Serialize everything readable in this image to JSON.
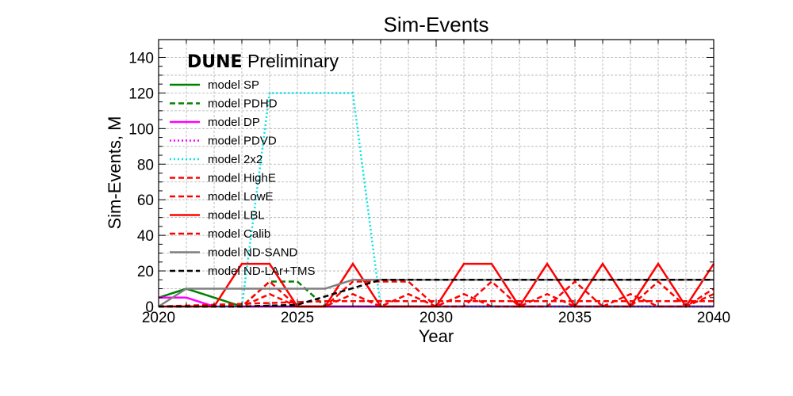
{
  "chart_data": {
    "type": "line",
    "title": "Sim-Events",
    "xlabel": "Year",
    "ylabel": "Sim-Events, M",
    "xlim": [
      2020,
      2040
    ],
    "ylim": [
      0,
      150
    ],
    "xticks": [
      2020,
      2025,
      2030,
      2035,
      2040
    ],
    "yticks": [
      0,
      20,
      40,
      60,
      80,
      100,
      120,
      140
    ],
    "grid": true,
    "legend_position": "top-left",
    "annotation": {
      "bold": "DUNE",
      "rest": " Preliminary"
    },
    "series": [
      {
        "name": "model SP",
        "color": "#008000",
        "dash": "solid",
        "x": [
          2020,
          2021,
          2023,
          2040
        ],
        "y": [
          5,
          10,
          0,
          0
        ]
      },
      {
        "name": "model PDHD",
        "color": "#008000",
        "dash": "dashed",
        "x": [
          2020,
          2023,
          2024,
          2025,
          2026,
          2040
        ],
        "y": [
          0,
          0,
          14,
          14,
          0,
          0
        ]
      },
      {
        "name": "model DP",
        "color": "#ff00ff",
        "dash": "solid",
        "x": [
          2020,
          2021,
          2022,
          2040
        ],
        "y": [
          5,
          5,
          0,
          0
        ]
      },
      {
        "name": "model PDVD",
        "color": "#ff00ff",
        "dash": "dotted",
        "x": [
          2020,
          2040
        ],
        "y": [
          0,
          0
        ]
      },
      {
        "name": "model 2x2",
        "color": "#00e5e5",
        "dash": "dotted",
        "x": [
          2020,
          2023,
          2024,
          2027,
          2028,
          2040
        ],
        "y": [
          0,
          0,
          120,
          120,
          0,
          0
        ]
      },
      {
        "name": "model HighE",
        "color": "#ff0000",
        "dash": "dashed",
        "x": [
          2020,
          2023,
          2024,
          2025,
          2026,
          2027,
          2028,
          2029,
          2030,
          2031,
          2032,
          2033,
          2034,
          2035,
          2036,
          2037,
          2038,
          2039,
          2040
        ],
        "y": [
          0,
          0,
          7,
          0,
          0,
          7,
          0,
          7,
          0,
          7,
          0,
          0,
          7,
          0,
          0,
          7,
          0,
          0,
          7
        ]
      },
      {
        "name": "model LowE",
        "color": "#ff0000",
        "dash": "dashed",
        "x": [
          2020,
          2023,
          2024,
          2025,
          2026,
          2027,
          2028,
          2029,
          2030,
          2031,
          2032,
          2033,
          2034,
          2035,
          2036,
          2037,
          2038,
          2039,
          2040
        ],
        "y": [
          0,
          0,
          14,
          0,
          0,
          14,
          14,
          14,
          0,
          0,
          14,
          0,
          0,
          14,
          0,
          0,
          14,
          0,
          10
        ]
      },
      {
        "name": "model LBL",
        "color": "#ff0000",
        "dash": "solid",
        "x": [
          2020,
          2022,
          2023,
          2024,
          2025,
          2026,
          2027,
          2028,
          2030,
          2031,
          2032,
          2033,
          2034,
          2035,
          2036,
          2037,
          2038,
          2039,
          2040
        ],
        "y": [
          0,
          0,
          24,
          24,
          0,
          0,
          24,
          0,
          0,
          24,
          24,
          0,
          24,
          0,
          24,
          0,
          24,
          0,
          24
        ]
      },
      {
        "name": "model Calib",
        "color": "#ff0000",
        "dash": "dashed",
        "x": [
          2020,
          2026,
          2040
        ],
        "y": [
          0,
          3,
          3
        ]
      },
      {
        "name": "model ND-SAND",
        "color": "#808080",
        "dash": "solid",
        "x": [
          2020,
          2021,
          2026,
          2027,
          2040
        ],
        "y": [
          0,
          10,
          10,
          15,
          15
        ]
      },
      {
        "name": "model ND-LAr+TMS",
        "color": "#000000",
        "dash": "dashed",
        "x": [
          2020,
          2023,
          2025,
          2028,
          2040
        ],
        "y": [
          0,
          0,
          1,
          15,
          15
        ]
      }
    ]
  }
}
